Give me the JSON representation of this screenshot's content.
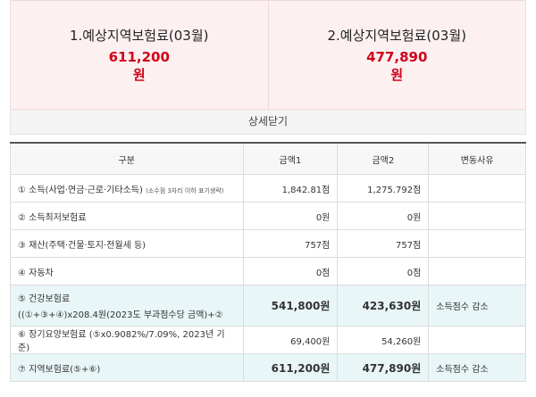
{
  "summary": [
    {
      "title": "1.예상지역보험료(03월)",
      "amount": "611,200",
      "unit": "원"
    },
    {
      "title": "2.예상지역보험료(03월)",
      "amount": "477,890",
      "unit": "원"
    }
  ],
  "toggle": "상세닫기",
  "table": {
    "headers": [
      "구분",
      "금액1",
      "금액2",
      "변동사유"
    ],
    "rows": [
      {
        "label": "① 소득(사업·연금·근로·기타소득)",
        "note": "(소수점 3자리 이하 표기생략)",
        "amount1": "1,842.81점",
        "amount2": "1,275.792점"
      },
      {
        "label": "② 소득최저보험료",
        "amount1": "0원",
        "amount2": "0원"
      },
      {
        "label": "③ 재산(주택·건물·토지·전월세 등)",
        "amount1": "757점",
        "amount2": "757점"
      },
      {
        "label": "④ 자동차",
        "amount1": "0점",
        "amount2": "0점"
      },
      {
        "label": "⑤ 건강보험료",
        "detail": "((①+③+④)x208.4원(2023도 부과점수당 금액)+②",
        "amount1": "541,800원",
        "amount2": "423,630원",
        "reason": "소득점수 감소",
        "highlight": true
      },
      {
        "label": "⑥ 장기요양보험료 (⑤x0.9082%/7.09%, 2023년 기준)",
        "amount1": "69,400원",
        "amount2": "54,260원"
      },
      {
        "label": "⑦ 지역보험료(⑤+⑥)",
        "amount1": "611,200원",
        "amount2": "477,890원",
        "reason": "소득점수 감소",
        "highlight": true
      }
    ]
  }
}
